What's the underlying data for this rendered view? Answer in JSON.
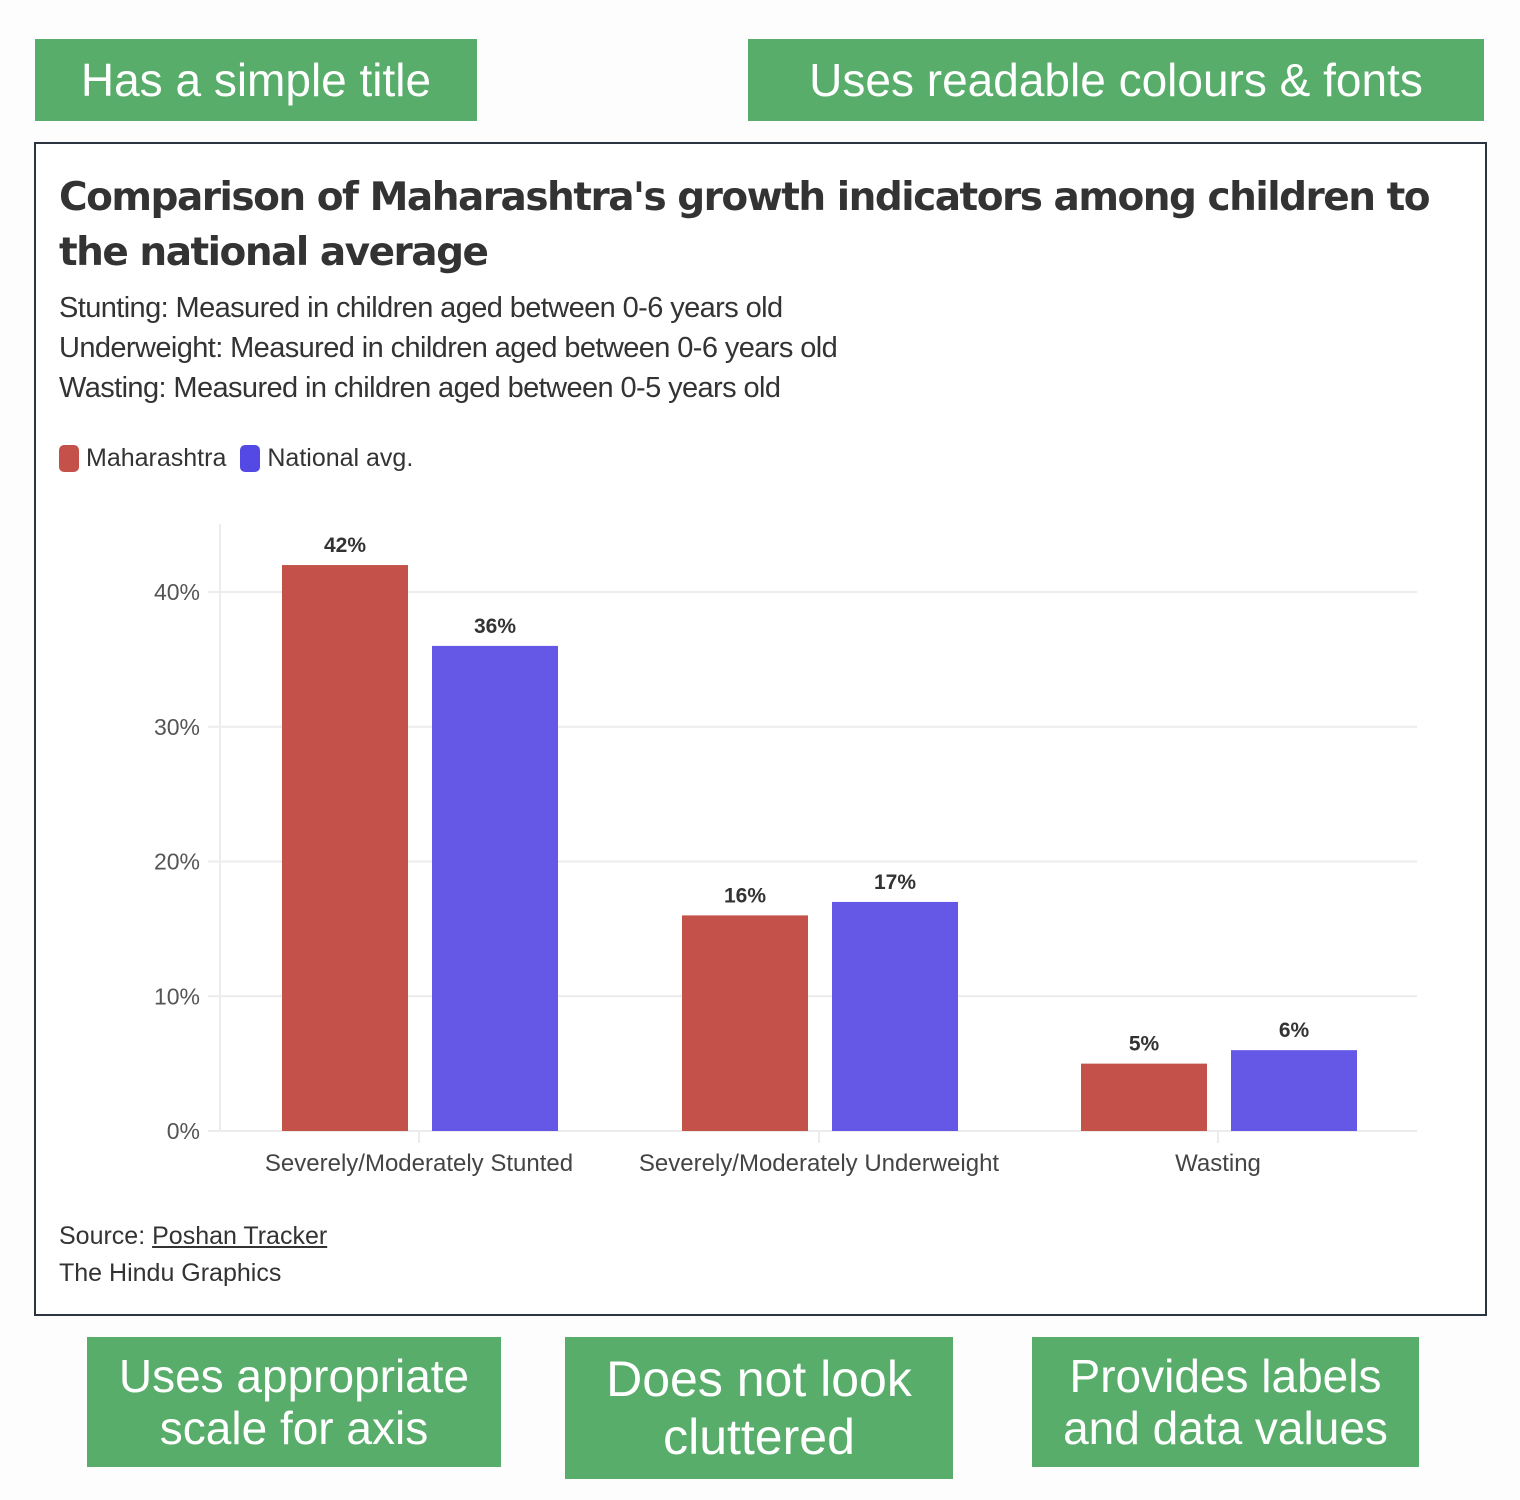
{
  "tags": {
    "simple_title": "Has a simple title",
    "readable": "Uses readable colours & fonts",
    "scale": "Uses appropriate scale for axis",
    "clutter": "Does not look cluttered",
    "labels": "Provides labels and data values"
  },
  "colors": {
    "tag_green": "#57ad69",
    "maharashtra": "#c4524a",
    "national": "#6558e6"
  },
  "chart_data": {
    "type": "bar",
    "title": "Comparison of Maharashtra's growth indicators among children to the national average",
    "subtitle_lines": [
      "Stunting: Measured in children aged between 0-6 years old",
      "Underweight: Measured in children aged between 0-6 years old",
      "Wasting: Measured in children aged between 0-5 years old"
    ],
    "categories": [
      "Severely/Moderately Stunted",
      "Severely/Moderately Underweight",
      "Wasting"
    ],
    "series": [
      {
        "name": "Maharashtra",
        "values": [
          42,
          16,
          5
        ],
        "color": "#c4524a"
      },
      {
        "name": "National avg.",
        "values": [
          36,
          17,
          6
        ],
        "color": "#6558e6"
      }
    ],
    "data_labels": [
      [
        "42%",
        "16%",
        "5%"
      ],
      [
        "36%",
        "17%",
        "6%"
      ]
    ],
    "yticks": [
      "0%",
      "10%",
      "20%",
      "30%",
      "40%"
    ],
    "ylim": [
      0,
      45
    ],
    "grid": true,
    "legend": "top-left",
    "source_prefix": "Source: ",
    "source_link": "Poshan Tracker",
    "credit": "The Hindu Graphics"
  }
}
